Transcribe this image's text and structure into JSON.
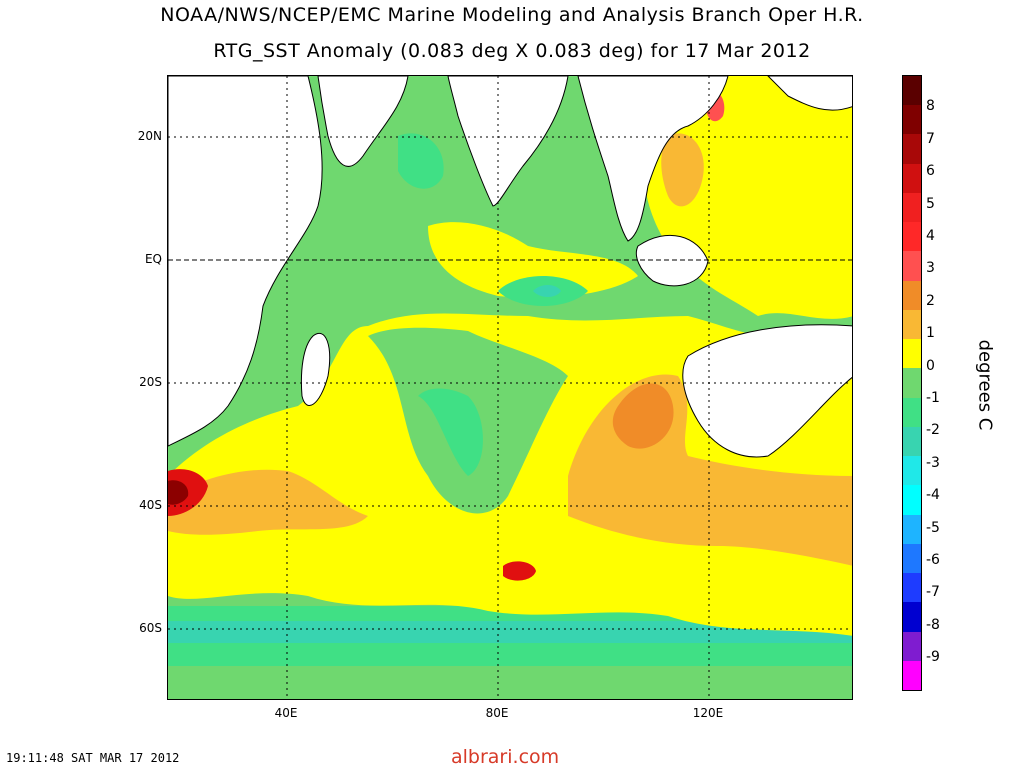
{
  "header": {
    "title_line1": "NOAA/NWS/NCEP/EMC Marine Modeling and Analysis Branch Oper H.R.",
    "title_line2": "RTG_SST Anomaly (0.083 deg X 0.083 deg) for 17 Mar 2012"
  },
  "map": {
    "lat_labels": [
      "20N",
      "EQ",
      "20S",
      "40S",
      "60S"
    ],
    "lon_labels": [
      "40E",
      "80E",
      "120E"
    ],
    "colors": {
      "land": "#ffffff",
      "pos1": "#ffff00",
      "pos2": "#f9b834",
      "pos3": "#f08c28",
      "pos4": "#ff5050",
      "pos6": "#e01010",
      "pos8": "#8c0000",
      "zero_neg": "#6fd86f",
      "neg1": "#40e085",
      "neg2": "#38d4b0",
      "neg3": "#20e8e8"
    }
  },
  "colorbar": {
    "units": "degrees C",
    "tick_labels": [
      "8",
      "7",
      "6",
      "5",
      "4",
      "3",
      "2",
      "1",
      "0",
      "-1",
      "-2",
      "-3",
      "-4",
      "-5",
      "-6",
      "-7",
      "-8",
      "-9"
    ],
    "colors": [
      "#5a0000",
      "#7f0000",
      "#a80808",
      "#d01010",
      "#f02020",
      "#ff2828",
      "#ff5050",
      "#f08c28",
      "#f9b834",
      "#ffff00",
      "#6fd86f",
      "#40e085",
      "#38d4b0",
      "#20e8e8",
      "#00ffff",
      "#1eb4ff",
      "#1e78ff",
      "#1e3cff",
      "#0000d0",
      "#7f1cd0",
      "#ff00ff"
    ]
  },
  "footer": {
    "timestamp": "19:11:48  SAT MAR 17 2012",
    "watermark": "albrari.com"
  }
}
